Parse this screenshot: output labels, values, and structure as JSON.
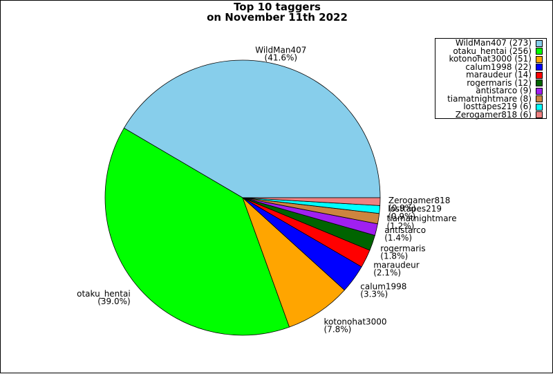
{
  "chart_data": {
    "type": "pie",
    "title": [
      "Top 10 taggers",
      "on November 11th 2022"
    ],
    "slices": [
      {
        "name": "WildMan407",
        "value": 273,
        "percent": "41.6%",
        "legend": "WildMan407 (273)",
        "color": "#87ceeb"
      },
      {
        "name": "otaku_hentai",
        "value": 256,
        "percent": "39.0%",
        "legend": "otaku_hentai (256)",
        "color": "#00ff00"
      },
      {
        "name": "kotonohat3000",
        "value": 51,
        "percent": "7.8%",
        "legend": "kotonohat3000 (51)",
        "color": "#ffa500"
      },
      {
        "name": "calum1998",
        "value": 22,
        "percent": "3.3%",
        "legend": "calum1998 (22)",
        "color": "#0000ff"
      },
      {
        "name": "maraudeur",
        "value": 14,
        "percent": "2.1%",
        "legend": "maraudeur (14)",
        "color": "#ff0000"
      },
      {
        "name": "rogermaris",
        "value": 12,
        "percent": "1.8%",
        "legend": "rogermaris (12)",
        "color": "#006400"
      },
      {
        "name": "antistarco",
        "value": 9,
        "percent": "1.4%",
        "legend": "antistarco (9)",
        "color": "#a020f0"
      },
      {
        "name": "tiamatnightmare",
        "value": 8,
        "percent": "1.2%",
        "legend": "tiamatnightmare (8)",
        "color": "#cd853f"
      },
      {
        "name": "losttapes219",
        "value": 6,
        "percent": "0.9%",
        "legend": "losttapes219 (6)",
        "color": "#00ffff"
      },
      {
        "name": "Zerogamer818",
        "value": 6,
        "percent": "0.9%",
        "legend": "Zerogamer818 (6)",
        "color": "#f08080"
      }
    ],
    "legend_position": "top-right"
  }
}
